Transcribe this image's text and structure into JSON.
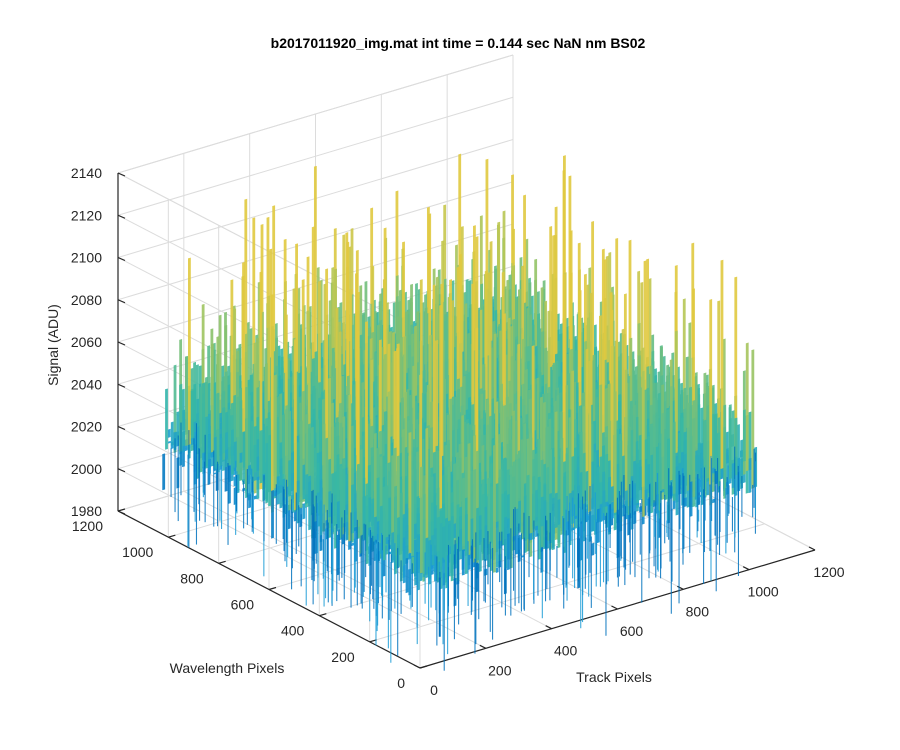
{
  "chart_data": {
    "type": "surface",
    "title": "b2017011920_img.mat int time = 0.144 sec  NaN nm BS02",
    "xlabel": "Track Pixels",
    "ylabel": "Wavelength Pixels",
    "zlabel": "Signal (ADU)",
    "xlim": [
      0,
      1200
    ],
    "ylim": [
      0,
      1200
    ],
    "zlim": [
      1980,
      2140
    ],
    "xticks": [
      "0",
      "200",
      "400",
      "600",
      "800",
      "1000",
      "1200"
    ],
    "yticks": [
      "0",
      "200",
      "400",
      "600",
      "800",
      "1000",
      "1200"
    ],
    "zticks": [
      "1980",
      "2000",
      "2020",
      "2040",
      "2060",
      "2080",
      "2100",
      "2120",
      "2140"
    ],
    "grid": true,
    "colormap": [
      "#0072bd",
      "#1a9bd6",
      "#35b7a6",
      "#8bc26b",
      "#e0c93f"
    ],
    "surface_x_extent": [
      0,
      1024
    ],
    "surface_y_extent": [
      0,
      1024
    ],
    "surface_z_range": [
      1990,
      2140
    ],
    "surface_z_mean": 2040
  }
}
